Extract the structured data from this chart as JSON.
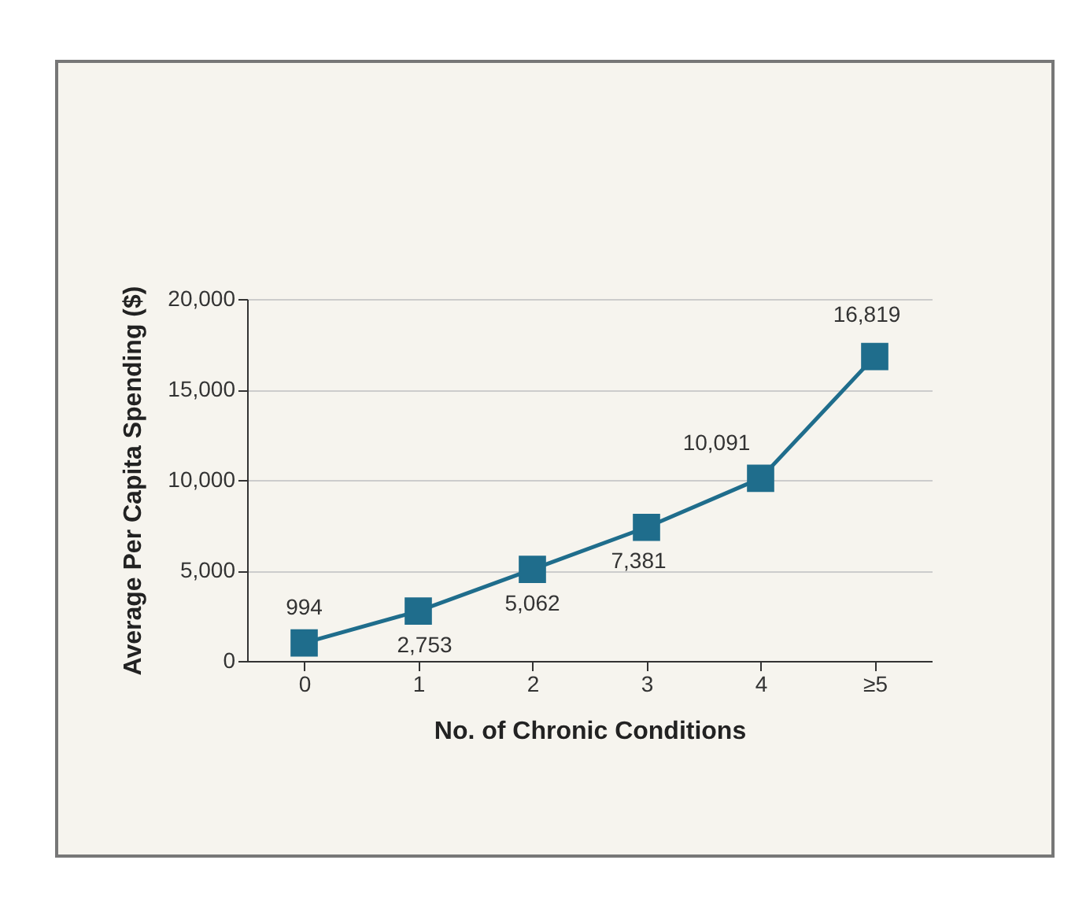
{
  "chart_data": {
    "type": "line",
    "xlabel": "No. of Chronic Conditions",
    "ylabel": "Average Per Capita Spending ($)",
    "categories": [
      "0",
      "1",
      "2",
      "3",
      "4",
      "≥5"
    ],
    "series": [
      {
        "color": "#1f6d8c",
        "values": [
          994,
          2753,
          5062,
          7381,
          10091,
          16819
        ],
        "value_labels": [
          "994",
          "2,753",
          "5,062",
          "7,381",
          "10,091",
          "16,819"
        ]
      }
    ],
    "ylim": [
      0,
      20000
    ],
    "yticks": [
      0,
      {
        "value": 5000,
        "label": "5,000"
      },
      {
        "value": 10000,
        "label": "10,000"
      },
      {
        "value": 15000,
        "label": "15,000"
      },
      {
        "value": 20000,
        "label": "20,000"
      }
    ],
    "grid": "y",
    "marker": "square",
    "line_style": "solid"
  }
}
